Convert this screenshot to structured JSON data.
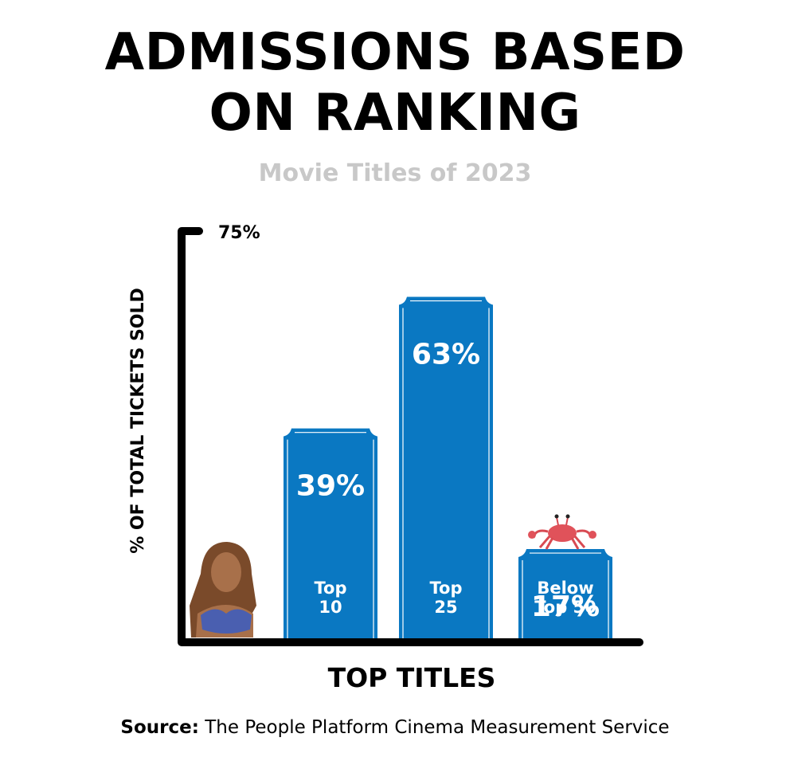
{
  "title_line1": "ADMISSIONS BASED",
  "title_line2": "ON RANKING",
  "subtitle": "Movie Titles of 2023",
  "source_label": "Source:",
  "source_text": "The People Platform Cinema Measurement Service",
  "colors": {
    "bar": "#0a78c2",
    "bar_trim": "#ffffff",
    "axis": "#000000",
    "subtitle": "#c8c8c8"
  },
  "icons": {
    "left_figure": "mermaid-figure-icon",
    "crab": "crab-icon"
  },
  "chart_data": {
    "type": "bar",
    "title": "ADMISSIONS BASED ON RANKING",
    "subtitle": "Movie Titles of 2023",
    "xlabel": "TOP TITLES",
    "ylabel": "% OF TOTAL TICKETS SOLD",
    "ylim": [
      0,
      75
    ],
    "y_tick_label": "75%",
    "grid": false,
    "categories": [
      {
        "lines": [
          "Top",
          "10"
        ]
      },
      {
        "lines": [
          "Top",
          "25"
        ]
      },
      {
        "lines": [
          "Below",
          "Top 50"
        ]
      }
    ],
    "values": [
      39,
      63,
      17
    ],
    "value_labels": [
      "39%",
      "63%",
      "17%"
    ]
  }
}
